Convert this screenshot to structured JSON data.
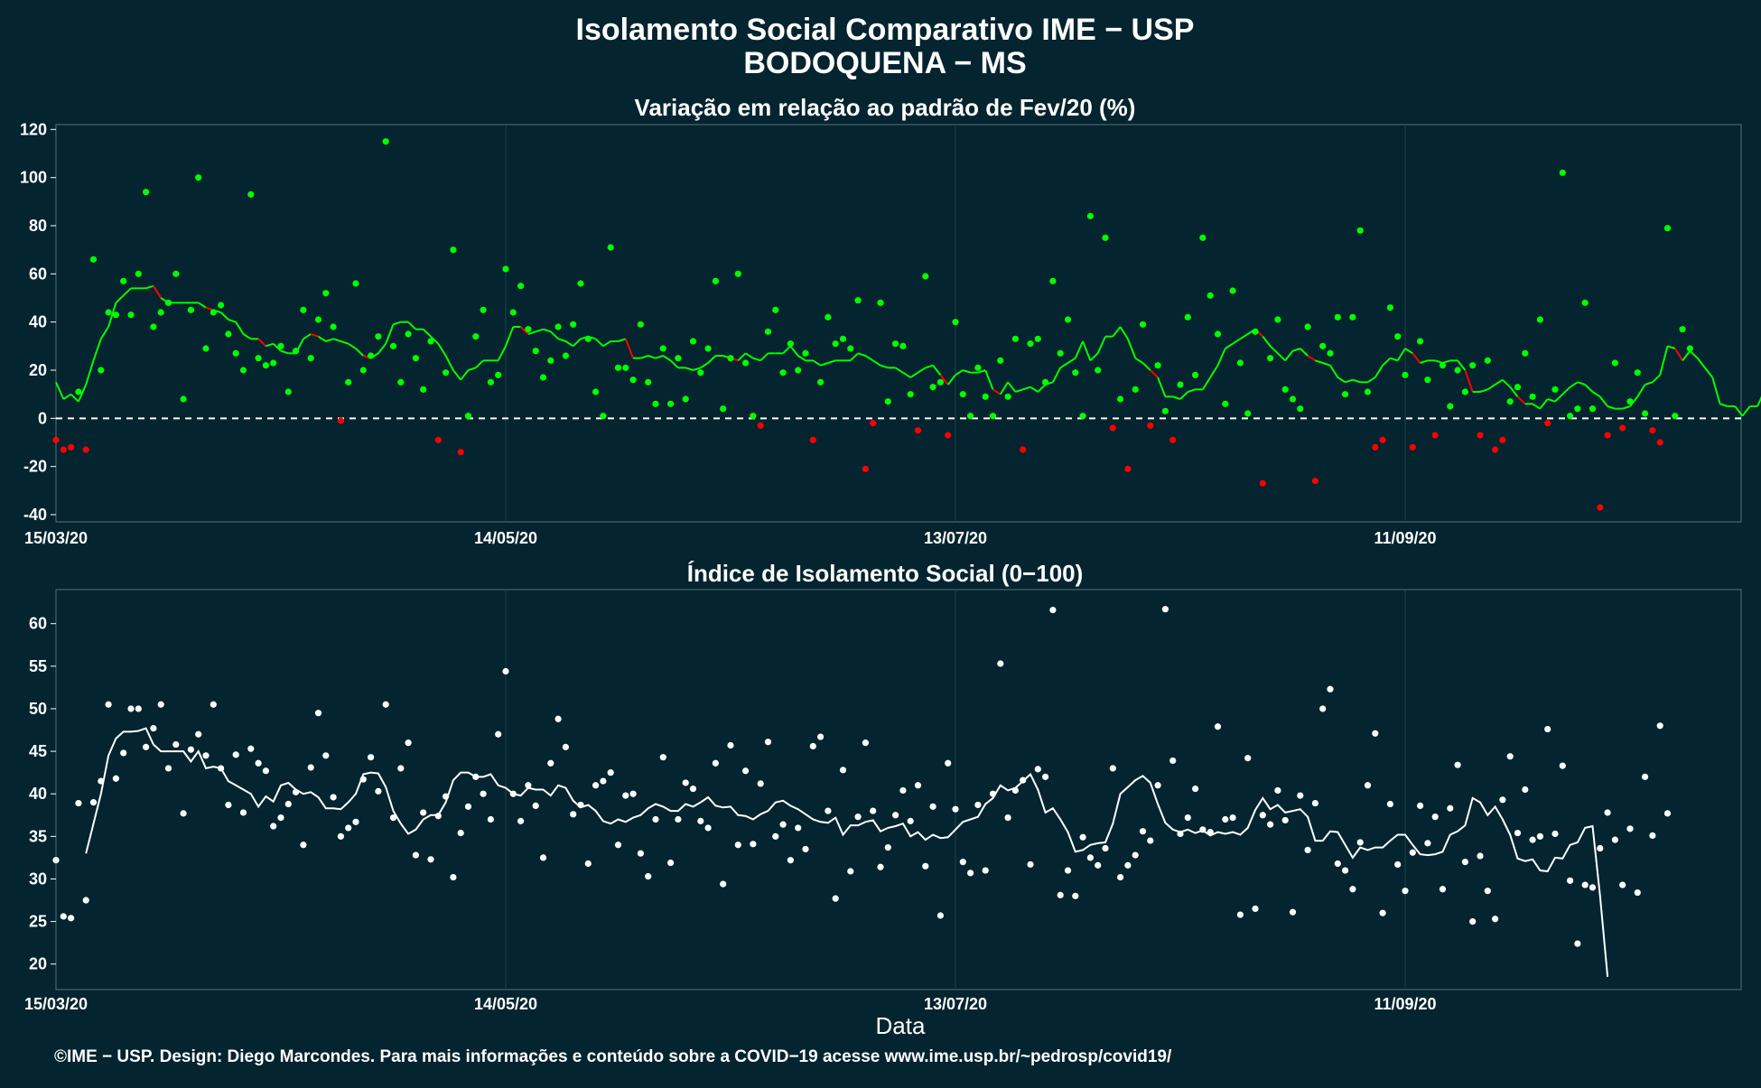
{
  "title_line1": "Isolamento Social Comparativo IME − USP",
  "title_line2": "BODOQUENA − MS",
  "xlabel": "Data",
  "footer": "©IME − USP. Design: Diego Marcondes. Para mais informações e conteúdo sobre a COVID−19 acesse www.ime.usp.br/~pedrosp/covid19/",
  "colors": {
    "background": "#04242f",
    "positive": "#00ff00",
    "negative": "#ff0000",
    "index": "#ffffff",
    "grid": "#1f3f4a"
  },
  "chart_data": [
    {
      "type": "scatter",
      "title": "Variação em relação ao padrão de Fev/20 (%)",
      "x_ticks": [
        "15/03/20",
        "14/05/20",
        "13/07/20",
        "11/09/20"
      ],
      "y_ticks": [
        -40,
        -20,
        0,
        20,
        40,
        60,
        80,
        100,
        120
      ],
      "ylim": [
        -43,
        122
      ],
      "start_date": "2020-03-15",
      "n_days": 226,
      "reference_line": 0,
      "series": [
        {
          "values": [
            -9,
            -13,
            -12,
            11,
            -13,
            66,
            20,
            44,
            43,
            57,
            43,
            60,
            94,
            38,
            44,
            48,
            60,
            8,
            45,
            100,
            29,
            44,
            47,
            35,
            27,
            20,
            93,
            25,
            22,
            23,
            30,
            11,
            28,
            45,
            25,
            41,
            52,
            38,
            -1,
            15,
            56,
            20,
            26,
            34,
            115,
            30,
            15,
            35,
            25,
            12,
            32,
            -9,
            19,
            70,
            -14,
            1,
            34,
            45,
            15,
            18,
            62,
            44,
            55,
            37,
            28,
            17,
            24,
            38,
            26,
            39,
            56,
            33,
            11,
            1,
            71,
            21,
            21,
            16,
            39,
            15,
            6,
            29,
            6,
            25,
            8,
            32,
            19,
            29,
            57,
            4,
            25,
            60,
            23,
            1,
            -3,
            36,
            45,
            19,
            31,
            20,
            27,
            -9,
            15,
            42,
            31,
            33,
            29,
            49,
            -21,
            -2,
            48,
            7,
            31,
            30,
            10,
            -5,
            59,
            13,
            15,
            -7,
            40,
            10,
            1,
            21,
            9,
            1,
            24,
            9,
            33,
            -13,
            31,
            33,
            15,
            57,
            27,
            41,
            19,
            1,
            84,
            20,
            75,
            -4,
            8,
            -21,
            12,
            39,
            -3,
            22,
            3,
            -9,
            14,
            42,
            18,
            75,
            51,
            35,
            6,
            53,
            23,
            2,
            36,
            -27,
            25,
            41,
            12,
            8,
            4,
            38,
            -26,
            30,
            27,
            42,
            10,
            42,
            78,
            11,
            -12,
            -9,
            46,
            34,
            18,
            -12,
            32,
            16,
            -7,
            22,
            5,
            20,
            11,
            22,
            -7,
            24,
            -13,
            -9,
            7,
            13,
            27,
            9,
            41,
            -2,
            12,
            102,
            1,
            4,
            48,
            4,
            -37,
            -7,
            23,
            -4,
            7,
            19,
            2,
            -5,
            -10,
            79,
            1,
            37,
            29
          ]
        }
      ],
      "moving_average": [
        15,
        8,
        10,
        7,
        14,
        24,
        33,
        38,
        48,
        51,
        54,
        54,
        54,
        55,
        50,
        48,
        48,
        48,
        48,
        48,
        46,
        45,
        44,
        41,
        40,
        35,
        33,
        33,
        30,
        31,
        28,
        27,
        27,
        33,
        35,
        34,
        32,
        33,
        32,
        31,
        29,
        26,
        25,
        27,
        31,
        39,
        40,
        40,
        37,
        37,
        34,
        31,
        26,
        20,
        16,
        20,
        21,
        24,
        24,
        24,
        30,
        38,
        38,
        35,
        36,
        37,
        36,
        33,
        32,
        30,
        33,
        34,
        33,
        30,
        32,
        32,
        33,
        25,
        25,
        26,
        25,
        26,
        24,
        21,
        21,
        20,
        21,
        23,
        26,
        26,
        25,
        24,
        27,
        25,
        24,
        27,
        27,
        27,
        30,
        26,
        24,
        24,
        22,
        23,
        24,
        24,
        24,
        27,
        26,
        24,
        22,
        21,
        21,
        19,
        17,
        19,
        21,
        22,
        18,
        14,
        18,
        20,
        19,
        19,
        20,
        12,
        10,
        15,
        11,
        12,
        13,
        11,
        14,
        15,
        21,
        23,
        25,
        32,
        24,
        27,
        34,
        34,
        38,
        33,
        25,
        23,
        20,
        17,
        9,
        9,
        8,
        11,
        12,
        12,
        17,
        22,
        29,
        31,
        33,
        35,
        37,
        34,
        30,
        27,
        24,
        28,
        29,
        26,
        24,
        23,
        22,
        17,
        15,
        16,
        15,
        15,
        17,
        22,
        25,
        24,
        29,
        27,
        23,
        24,
        24,
        23,
        24,
        24,
        20,
        11,
        11,
        12,
        14,
        16,
        13,
        9,
        6,
        6,
        4,
        8,
        7,
        10,
        13,
        15,
        14,
        11,
        9,
        5,
        4,
        4,
        5,
        9,
        14,
        15,
        18,
        30,
        29,
        24,
        28,
        25,
        21,
        17,
        6,
        5,
        5,
        1,
        5,
        5,
        12,
        13
      ]
    },
    {
      "type": "scatter",
      "title": "Índice de Isolamento Social (0−100)",
      "x_ticks": [
        "15/03/20",
        "14/05/20",
        "13/07/20",
        "11/09/20"
      ],
      "y_ticks": [
        20,
        25,
        30,
        35,
        40,
        45,
        50,
        55,
        60
      ],
      "ylim": [
        17,
        64
      ],
      "start_date": "2020-03-15",
      "n_days": 226,
      "series": [
        {
          "values": [
            32.2,
            25.6,
            25.4,
            38.9,
            27.5,
            39,
            41.5,
            50.5,
            41.8,
            44.8,
            50,
            50,
            45.5,
            47.7,
            50.5,
            43,
            45.8,
            37.7,
            45.2,
            47,
            44.5,
            50.5,
            43,
            38.7,
            44.6,
            37.8,
            45.3,
            43.6,
            42.7,
            36.2,
            37.2,
            38.8,
            40.2,
            34,
            43.1,
            49.5,
            44.5,
            39.6,
            35,
            36,
            36.7,
            41.7,
            44.3,
            40.3,
            50.5,
            37.2,
            43,
            46,
            32.8,
            37.8,
            32.3,
            37.4,
            39.7,
            30.2,
            35.4,
            38.5,
            42,
            40,
            37,
            47,
            54.4,
            40,
            36.8,
            41,
            38.6,
            32.5,
            43.6,
            48.8,
            45.5,
            37.6,
            38.7,
            31.8,
            41,
            41.5,
            42.5,
            34,
            39.8,
            40,
            33,
            30.3,
            37,
            44.3,
            31.9,
            37,
            41.3,
            40.6,
            36.8,
            36,
            43.6,
            29.4,
            45.7,
            34,
            42.7,
            34.1,
            41.2,
            46.1,
            35,
            36.4,
            32.2,
            36,
            33.5,
            45.6,
            46.7,
            38,
            27.7,
            42.8,
            30.9,
            37.3,
            46,
            38,
            31.4,
            33.7,
            37.5,
            40.4,
            36.8,
            41,
            31.5,
            38.5,
            25.7,
            43.6,
            38.2,
            32,
            30.7,
            38.7,
            31,
            40,
            55.3,
            37.2,
            40.4,
            41.6,
            31.7,
            42.9,
            42,
            61.6,
            28.1,
            31,
            28,
            34.9,
            32.5,
            31.6,
            33.6,
            43,
            30.2,
            31.6,
            32.8,
            35.6,
            34.5,
            41,
            61.7,
            43.9,
            35.3,
            37.2,
            40.6,
            35.8,
            35.5,
            47.9,
            37,
            37.2,
            25.8,
            44.2,
            26.5,
            37.5,
            36.4,
            40.4,
            36.9,
            26.1,
            39.8,
            33.4,
            38.9,
            50,
            52.3,
            31.8,
            31,
            28.8,
            34.3,
            41,
            47.1,
            26,
            38.8,
            31.7,
            28.6,
            33.1,
            38.6,
            34.2,
            37.3,
            28.8,
            38.3,
            43.4,
            32,
            25,
            32.7,
            28.6,
            25.3,
            39.3,
            44.4,
            35.4,
            40.5,
            34.6,
            35,
            47.6,
            35.3,
            43.3,
            29.8,
            22.4,
            29.3,
            29,
            33.6,
            37.8,
            34.6,
            29.3,
            35.9,
            28.4,
            42,
            35.1,
            48,
            37.7
          ]
        }
      ],
      "moving_average": [
        null,
        null,
        null,
        null,
        33,
        36.5,
        40,
        44.5,
        46.5,
        47.3,
        47.3,
        47.4,
        47.7,
        45.8,
        45,
        45,
        45,
        45,
        43.8,
        45,
        43,
        43.2,
        43,
        41.5,
        41,
        40.5,
        40,
        38.5,
        39.7,
        39.1,
        41,
        41.3,
        40.5,
        40,
        40.2,
        39.6,
        38.3,
        38.3,
        38.2,
        39,
        40,
        42.3,
        42.5,
        42.4,
        40.8,
        38,
        36.5,
        35.3,
        35.8,
        37,
        37.5,
        37.5,
        39,
        41.6,
        42.5,
        42.5,
        42,
        42,
        42.3,
        41,
        40.7,
        40,
        39.8,
        40.7,
        40.5,
        40.5,
        39.8,
        41,
        40.7,
        39.2,
        38.4,
        38.7,
        38,
        36.8,
        36.5,
        37,
        36.7,
        37.2,
        37.5,
        38.3,
        38.8,
        38.5,
        38,
        38,
        38.8,
        38.5,
        39,
        39.6,
        38.6,
        38.4,
        38.5,
        37.5,
        37.4,
        37,
        37.6,
        38,
        39,
        39.2,
        38.6,
        38.2,
        37.6,
        37,
        36.7,
        36.6,
        37.2,
        35.2,
        36.3,
        36.3,
        36.7,
        36.9,
        35.6,
        36,
        36.2,
        36.5,
        35,
        35.5,
        34.6,
        35.2,
        34.8,
        34.9,
        35.8,
        36.7,
        37,
        37.3,
        38.8,
        39.5,
        41,
        40.4,
        40.7,
        41.5,
        42.3,
        40.5,
        37.8,
        38.3,
        37,
        35.5,
        33.2,
        33.4,
        34,
        34.2,
        34.3,
        36.5,
        40,
        40.8,
        41.6,
        42.1,
        41.3,
        38.8,
        36.6,
        35.8,
        35.5,
        35.8,
        35.4,
        35.7,
        35.1,
        35.5,
        35.3,
        35.5,
        35.2,
        36,
        38.1,
        39.5,
        38.2,
        38.7,
        37.8,
        38,
        38.2,
        37.3,
        34.5,
        34.5,
        35.6,
        35.5,
        34,
        32.5,
        33.7,
        33.4,
        33.7,
        33.7,
        34.5,
        35.2,
        35.2,
        34,
        32.9,
        32.8,
        32.9,
        33.2,
        35.2,
        35.6,
        36.3,
        39.5,
        39,
        37.5,
        38.5,
        37,
        35.2,
        32.4,
        32.1,
        32.3,
        31,
        30.9,
        32.5,
        32.4,
        34,
        34.3,
        36,
        36.2,
        28,
        18.5
      ]
    }
  ]
}
